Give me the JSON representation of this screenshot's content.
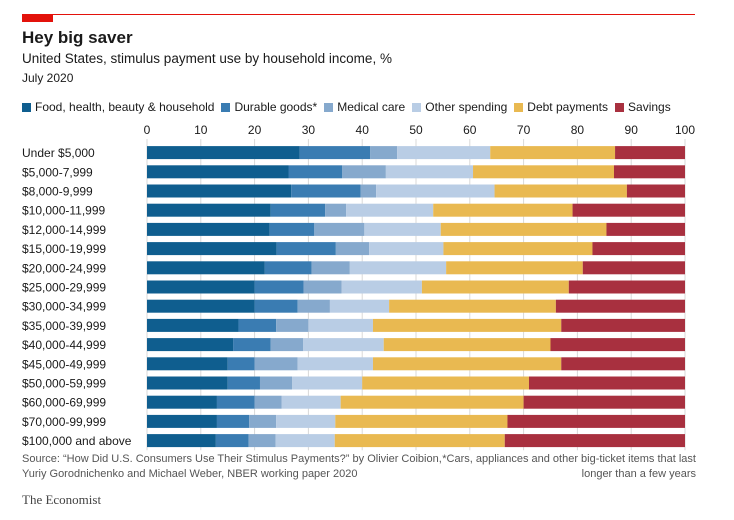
{
  "header": {
    "title": "Hey big saver",
    "subtitle": "United States, stimulus payment use by household income, %",
    "date": "July 2020"
  },
  "footer": {
    "source": "Source: “How Did U.S. Consumers Use Their Stimulus Payments?” by Olivier Coibion, Yuriy Gorodnichenko and Michael Weber, NBER working paper 2020",
    "footnote": "*Cars, appliances and other big-ticket items that last longer than a few years",
    "brand": "The Economist"
  },
  "colors": {
    "accent_red": "#e3120b",
    "gridline": "#d9d9d9"
  },
  "chart_data": {
    "type": "bar",
    "orientation": "horizontal",
    "stacked": true,
    "xlim": [
      0,
      100
    ],
    "xticks": [
      0,
      10,
      20,
      30,
      40,
      50,
      60,
      70,
      80,
      90,
      100
    ],
    "grid": true,
    "legend_position": "top",
    "categories": [
      "Under $5,000",
      "$5,000-7,999",
      "$8,000-9,999",
      "$10,000-11,999",
      "$12,000-14,999",
      "$15,000-19,999",
      "$20,000-24,999",
      "$25,000-29,999",
      "$30,000-34,999",
      "$35,000-39,999",
      "$40,000-44,999",
      "$45,000-49,999",
      "$50,000-59,999",
      "$60,000-69,999",
      "$70,000-99,999",
      "$100,000 and above"
    ],
    "series": [
      {
        "name": "Food, health, beauty & household",
        "color": "#0f5e8f",
        "values": [
          28.4,
          26.3,
          26.8,
          23.0,
          22.8,
          24.1,
          21.9,
          20.0,
          20.0,
          17.0,
          16.0,
          15.0,
          15.0,
          13.0,
          13.0,
          12.8
        ]
      },
      {
        "name": "Durable goods*",
        "color": "#3a7cb2",
        "values": [
          13.1,
          10.0,
          12.9,
          10.1,
          8.3,
          11.0,
          8.7,
          9.1,
          8.0,
          7.0,
          7.0,
          5.0,
          6.0,
          7.0,
          6.0,
          6.1
        ]
      },
      {
        "name": "Medical care",
        "color": "#86a9cd",
        "values": [
          5.0,
          8.1,
          2.9,
          3.9,
          9.3,
          6.2,
          7.1,
          7.1,
          6.0,
          6.0,
          6.0,
          8.0,
          6.0,
          5.0,
          5.0,
          5.0
        ]
      },
      {
        "name": "Other spending",
        "color": "#b9cde5",
        "values": [
          17.3,
          16.2,
          22.0,
          16.2,
          14.2,
          13.8,
          17.9,
          14.9,
          11.0,
          12.0,
          15.0,
          14.0,
          13.0,
          11.0,
          11.0,
          11.0
        ]
      },
      {
        "name": "Debt payments",
        "color": "#e9b951",
        "values": [
          23.2,
          26.2,
          24.6,
          25.9,
          30.8,
          27.7,
          25.4,
          27.3,
          31.0,
          35.0,
          31.0,
          35.0,
          31.0,
          34.0,
          32.0,
          31.6
        ]
      },
      {
        "name": "Savings",
        "color": "#a8303f",
        "values": [
          13.0,
          13.2,
          10.8,
          20.9,
          14.6,
          17.2,
          19.0,
          21.6,
          24.0,
          23.0,
          25.0,
          23.0,
          29.0,
          30.0,
          33.0,
          33.5
        ]
      }
    ]
  }
}
